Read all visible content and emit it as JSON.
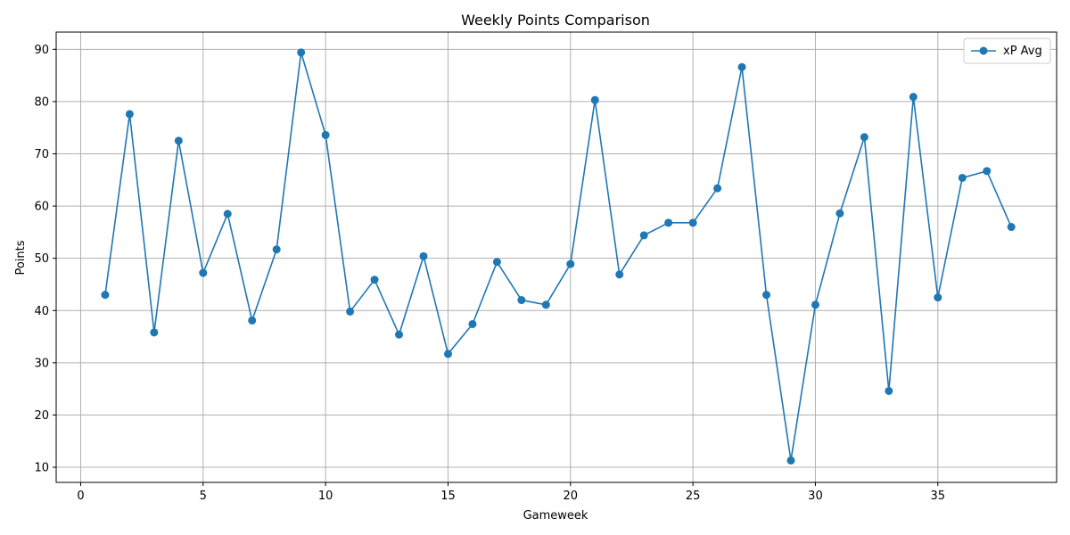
{
  "chart_data": {
    "type": "line",
    "title": "Weekly Points Comparison",
    "xlabel": "Gameweek",
    "ylabel": "Points",
    "xlim": [
      -1,
      39.85
    ],
    "ylim": [
      7.1,
      93.3
    ],
    "xticks": [
      0,
      5,
      10,
      15,
      20,
      25,
      30,
      35
    ],
    "yticks": [
      10,
      20,
      30,
      40,
      50,
      60,
      70,
      80,
      90
    ],
    "grid": true,
    "legend_position": "top-right",
    "series": [
      {
        "name": "xP Avg",
        "color": "#1f77b4",
        "marker": "circle",
        "x": [
          1,
          2,
          3,
          4,
          5,
          6,
          7,
          8,
          9,
          10,
          11,
          12,
          13,
          14,
          15,
          16,
          17,
          18,
          19,
          20,
          21,
          22,
          23,
          24,
          25,
          26,
          27,
          28,
          29,
          30,
          31,
          32,
          33,
          34,
          35,
          36,
          37,
          38
        ],
        "y": [
          43.0,
          77.6,
          35.8,
          72.5,
          47.2,
          58.5,
          38.1,
          51.7,
          89.4,
          73.6,
          39.8,
          45.9,
          35.4,
          50.4,
          31.7,
          37.4,
          49.3,
          42.0,
          41.1,
          48.9,
          80.3,
          46.9,
          54.4,
          56.8,
          56.8,
          63.4,
          86.6,
          43.0,
          11.3,
          41.1,
          58.6,
          73.2,
          24.6,
          80.9,
          42.5,
          65.4,
          66.7,
          56.0
        ]
      }
    ]
  }
}
